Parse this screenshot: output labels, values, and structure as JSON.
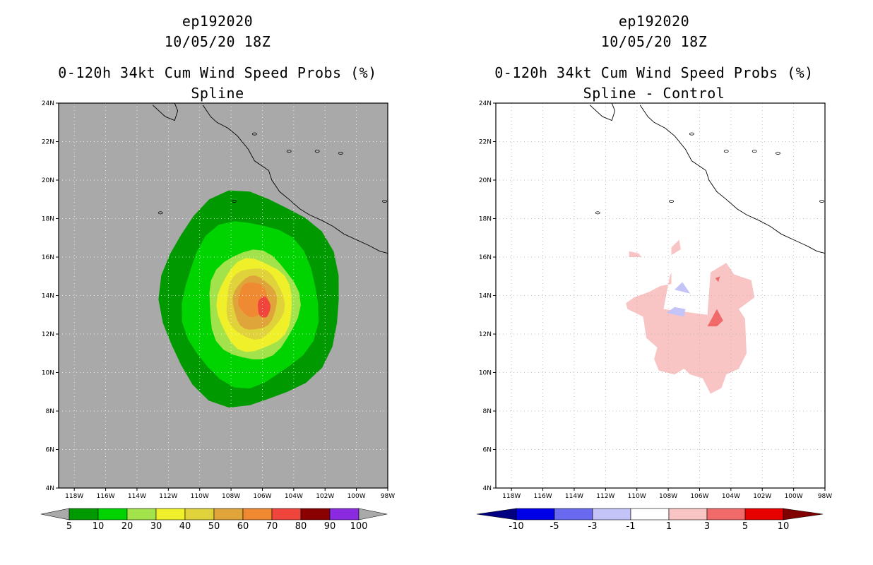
{
  "chart_data": [
    {
      "type": "heatmap",
      "storm_id": "ep192020",
      "date": "10/05/20 18Z",
      "title": "0-120h 34kt Cum Wind Speed Probs (%)",
      "subtitle": "Spline",
      "xlim": [
        -119,
        -98
      ],
      "ylim": [
        4,
        24
      ],
      "x_ticks": [
        "118W",
        "116W",
        "114W",
        "112W",
        "110W",
        "108W",
        "106W",
        "104W",
        "102W",
        "100W",
        "98W"
      ],
      "y_ticks": [
        "4N",
        "6N",
        "8N",
        "10N",
        "12N",
        "14N",
        "16N",
        "18N",
        "20N",
        "22N",
        "24N"
      ],
      "background": "#a9a9a9",
      "grid": true,
      "contours": [
        {
          "level": 5,
          "color": "#009a00",
          "center": [
            -106.8,
            13.8
          ],
          "rx": 5.75,
          "ry": 5.55
        },
        {
          "level": 10,
          "color": "#00d400",
          "center": [
            -106.8,
            13.6
          ],
          "rx": 4.35,
          "ry": 4.3
        },
        {
          "level": 20,
          "color": "#a2e24a",
          "center": [
            -106.6,
            13.5
          ],
          "rx": 2.9,
          "ry": 2.85
        },
        {
          "level": 30,
          "color": "#f0f02a",
          "center": [
            -106.5,
            13.5
          ],
          "rx": 2.4,
          "ry": 2.4
        },
        {
          "level": 40,
          "color": "#e0d23a",
          "center": [
            -106.5,
            13.6
          ],
          "rx": 1.85,
          "ry": 1.85
        },
        {
          "level": 50,
          "color": "#e0a53a",
          "center": [
            -106.5,
            13.6
          ],
          "rx": 1.4,
          "ry": 1.4
        },
        {
          "level": 60,
          "color": "#f08a32",
          "center": [
            -106.6,
            13.8
          ],
          "rx": 0.95,
          "ry": 0.9
        },
        {
          "level": 70,
          "color": "#f0453c",
          "center": [
            -105.9,
            13.4
          ],
          "rx": 0.4,
          "ry": 0.55
        }
      ],
      "colorbar": {
        "labels": [
          "5",
          "10",
          "20",
          "30",
          "40",
          "50",
          "60",
          "70",
          "80",
          "90",
          "100"
        ],
        "colors": [
          "#a9a9a9",
          "#009a00",
          "#00d400",
          "#a2e24a",
          "#f0f02a",
          "#e0d23a",
          "#e0a53a",
          "#f08a32",
          "#f0453c",
          "#8b0000",
          "#8a2be2",
          "#a9a9a9"
        ]
      }
    },
    {
      "type": "heatmap",
      "storm_id": "ep192020",
      "date": "10/05/20 18Z",
      "title": "0-120h 34kt Cum Wind Speed Probs (%)",
      "subtitle": "Spline - Control",
      "xlim": [
        -119,
        -98
      ],
      "ylim": [
        4,
        24
      ],
      "x_ticks": [
        "118W",
        "116W",
        "114W",
        "112W",
        "110W",
        "108W",
        "106W",
        "104W",
        "102W",
        "100W",
        "98W"
      ],
      "y_ticks": [
        "4N",
        "6N",
        "8N",
        "10N",
        "12N",
        "14N",
        "16N",
        "18N",
        "20N",
        "22N",
        "24N"
      ],
      "background": "#ffffff",
      "grid": true,
      "colorbar": {
        "labels": [
          "-10",
          "-5",
          "-3",
          "-1",
          "1",
          "3",
          "5",
          "10"
        ],
        "colors": [
          "#000080",
          "#0000e6",
          "#6a6af0",
          "#c4c4f8",
          "#ffffff",
          "#f8c4c4",
          "#f06a6a",
          "#e60000",
          "#800000"
        ]
      }
    }
  ]
}
